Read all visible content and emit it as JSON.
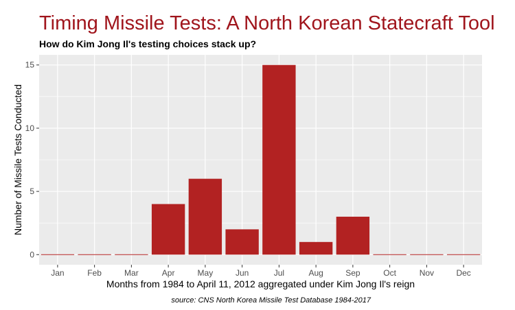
{
  "chart_data": {
    "type": "bar",
    "title": "Timing Missile Tests: A North Korean Statecraft Tool",
    "subtitle": "How do Kim Jong Il's testing choices stack up?",
    "xlabel": "Months from 1984 to April 11, 2012 aggregated under Kim Jong Il's reign",
    "ylabel": "Number of Missile Tests Conducted",
    "caption": "source: CNS North Korea Missile Test Database 1984-2017",
    "categories": [
      "Jan",
      "Feb",
      "Mar",
      "Apr",
      "May",
      "Jun",
      "Jul",
      "Aug",
      "Sep",
      "Oct",
      "Nov",
      "Dec"
    ],
    "values": [
      0,
      0,
      0,
      4,
      6,
      2,
      15,
      1,
      3,
      0,
      0,
      0
    ],
    "ylim": [
      -0.8,
      15.8
    ],
    "yticks": [
      0,
      5,
      10,
      15
    ],
    "grid": true,
    "legend": "none",
    "colors": {
      "bar": "#b22222",
      "panel": "#ebebeb",
      "grid": "#ffffff",
      "title": "#a0151c"
    }
  }
}
